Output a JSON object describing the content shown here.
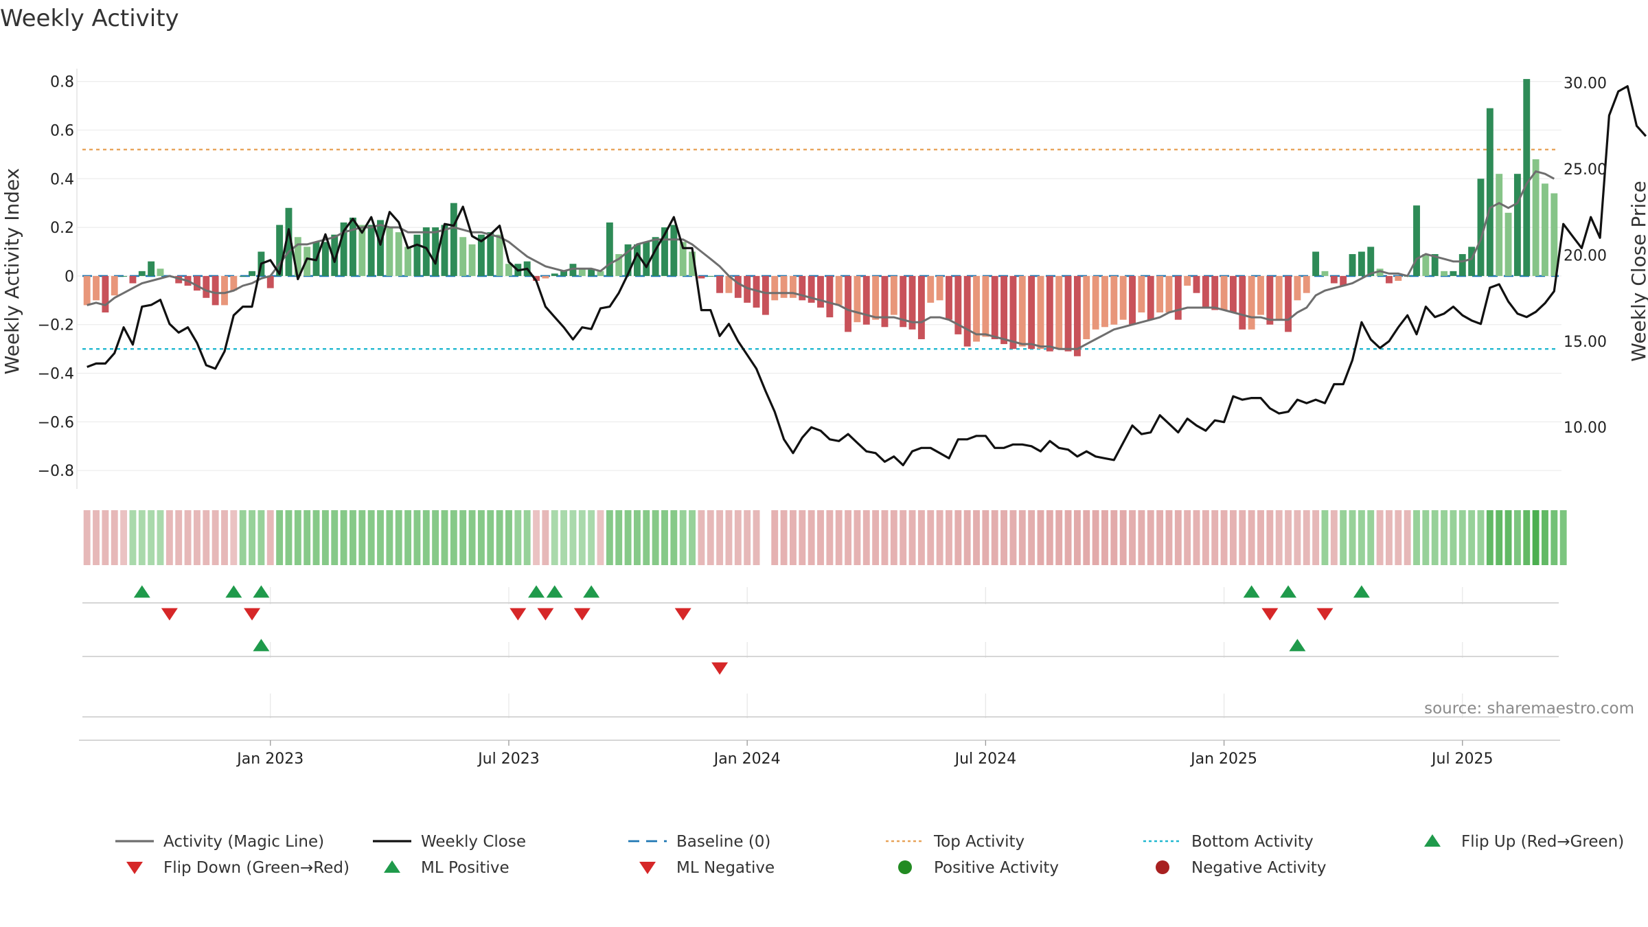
{
  "chart_data": {
    "type": "bar",
    "title": "Weekly Activity",
    "ylabel": "Weekly Activity Index",
    "y2label": "Weekly Close Price",
    "source": "source: sharemaestro.com",
    "ylim": [
      -0.87,
      0.83
    ],
    "y2lim": [
      6.5,
      30.5
    ],
    "yticks": [
      0.8,
      0.6,
      0.4,
      0.2,
      0,
      -0.2,
      -0.4,
      -0.6,
      -0.8
    ],
    "y2ticks": [
      "30.00",
      "25.00",
      "20.00",
      "15.00",
      "10.00"
    ],
    "x_tick_labels": [
      "Jan 2023",
      "Jul 2023",
      "Jan 2024",
      "Jul 2024",
      "Jan 2025",
      "Jul 2025"
    ],
    "x_tick_weeks": [
      20,
      46,
      72,
      98,
      124,
      150
    ],
    "top_activity": 0.52,
    "bottom_activity": -0.3,
    "grid": true,
    "legend_position": "bottom",
    "colors": {
      "pos_strong": "#2e8b57",
      "pos_weak": "#86c488",
      "neg_strong": "#c8525a",
      "neg_weak": "#e8967a",
      "magic": "#6e6e6e",
      "close": "#111111",
      "baseline": "#1f77b4",
      "top": "#e8a35a",
      "bottom": "#20b8d0",
      "flip_up": "#1f9a4b",
      "flip_down": "#d62728"
    },
    "activity": [
      -0.12,
      -0.1,
      -0.15,
      -0.08,
      0,
      -0.03,
      0.02,
      0.06,
      0.03,
      0,
      -0.03,
      -0.04,
      -0.06,
      -0.09,
      -0.12,
      -0.12,
      -0.06,
      0,
      0.02,
      0.1,
      -0.05,
      0.21,
      0.28,
      0.16,
      0.12,
      0.14,
      0.14,
      0.17,
      0.22,
      0.24,
      0.21,
      0.21,
      0.23,
      0.2,
      0.18,
      0.12,
      0.17,
      0.2,
      0.2,
      0.21,
      0.3,
      0.16,
      0.13,
      0.17,
      0.18,
      0.17,
      0.05,
      0.05,
      0.06,
      -0.02,
      -0.01,
      0.01,
      0.02,
      0.05,
      0.03,
      0.03,
      0.02,
      0.22,
      0.09,
      0.13,
      0.13,
      0.14,
      0.16,
      0.2,
      0.21,
      0.14,
      0.1,
      -0.01,
      0,
      -0.07,
      -0.07,
      -0.09,
      -0.11,
      -0.13,
      -0.16,
      -0.1,
      -0.09,
      -0.09,
      -0.1,
      -0.11,
      -0.13,
      -0.17,
      -0.12,
      -0.23,
      -0.19,
      -0.2,
      -0.18,
      -0.21,
      -0.16,
      -0.21,
      -0.22,
      -0.26,
      -0.11,
      -0.1,
      -0.18,
      -0.24,
      -0.29,
      -0.27,
      -0.25,
      -0.26,
      -0.28,
      -0.3,
      -0.29,
      -0.3,
      -0.3,
      -0.31,
      -0.3,
      -0.31,
      -0.33,
      -0.26,
      -0.22,
      -0.21,
      -0.2,
      -0.18,
      -0.2,
      -0.15,
      -0.18,
      -0.15,
      -0.15,
      -0.18,
      -0.04,
      -0.07,
      -0.13,
      -0.14,
      -0.14,
      -0.15,
      -0.22,
      -0.22,
      -0.16,
      -0.2,
      -0.18,
      -0.23,
      -0.1,
      -0.07,
      0.1,
      0.02,
      -0.03,
      -0.04,
      0.09,
      0.1,
      0.12,
      0.03,
      -0.03,
      -0.02,
      0,
      0.29,
      0.09,
      0.09,
      0.02,
      0.02,
      0.09,
      0.12,
      0.4,
      0.69,
      0.42,
      0.26,
      0.42,
      0.81,
      0.48,
      0.38,
      0.34
    ],
    "magic_line": [
      -0.12,
      -0.11,
      -0.12,
      -0.09,
      -0.07,
      -0.05,
      -0.03,
      -0.02,
      -0.01,
      0,
      -0.01,
      -0.02,
      -0.04,
      -0.06,
      -0.07,
      -0.07,
      -0.06,
      -0.04,
      -0.03,
      -0.01,
      0,
      0.05,
      0.1,
      0.13,
      0.13,
      0.14,
      0.15,
      0.16,
      0.18,
      0.19,
      0.2,
      0.2,
      0.21,
      0.2,
      0.2,
      0.18,
      0.18,
      0.18,
      0.18,
      0.19,
      0.2,
      0.19,
      0.18,
      0.18,
      0.17,
      0.16,
      0.14,
      0.11,
      0.08,
      0.06,
      0.04,
      0.03,
      0.02,
      0.03,
      0.03,
      0.03,
      0.02,
      0.05,
      0.07,
      0.1,
      0.13,
      0.14,
      0.15,
      0.15,
      0.15,
      0.15,
      0.13,
      0.1,
      0.07,
      0.04,
      0,
      -0.03,
      -0.05,
      -0.06,
      -0.07,
      -0.07,
      -0.07,
      -0.07,
      -0.08,
      -0.09,
      -0.1,
      -0.11,
      -0.12,
      -0.14,
      -0.15,
      -0.16,
      -0.17,
      -0.17,
      -0.17,
      -0.18,
      -0.19,
      -0.19,
      -0.17,
      -0.17,
      -0.18,
      -0.2,
      -0.22,
      -0.24,
      -0.24,
      -0.25,
      -0.26,
      -0.27,
      -0.28,
      -0.28,
      -0.29,
      -0.29,
      -0.3,
      -0.3,
      -0.3,
      -0.28,
      -0.26,
      -0.24,
      -0.22,
      -0.21,
      -0.2,
      -0.19,
      -0.18,
      -0.17,
      -0.15,
      -0.14,
      -0.13,
      -0.13,
      -0.13,
      -0.13,
      -0.14,
      -0.15,
      -0.16,
      -0.17,
      -0.17,
      -0.18,
      -0.18,
      -0.18,
      -0.15,
      -0.13,
      -0.08,
      -0.06,
      -0.05,
      -0.04,
      -0.03,
      -0.01,
      0.01,
      0.02,
      0.01,
      0.01,
      0,
      0.07,
      0.09,
      0.08,
      0.07,
      0.06,
      0.06,
      0.07,
      0.15,
      0.28,
      0.3,
      0.28,
      0.3,
      0.38,
      0.43,
      0.42,
      0.4
    ],
    "weekly_close": [
      13.5,
      13.7,
      13.7,
      14.3,
      15.8,
      14.8,
      17.0,
      17.1,
      17.4,
      16.0,
      15.5,
      15.8,
      14.9,
      13.6,
      13.4,
      14.4,
      16.5,
      17.0,
      17.0,
      19.5,
      19.7,
      18.9,
      21.5,
      18.6,
      19.8,
      19.7,
      21.2,
      19.6,
      21.4,
      22.1,
      21.3,
      22.2,
      20.6,
      22.5,
      21.9,
      20.4,
      20.6,
      20.4,
      19.5,
      21.8,
      21.7,
      22.8,
      21.1,
      20.8,
      21.2,
      21.7,
      19.6,
      19.1,
      19.2,
      18.5,
      17.0,
      16.4,
      15.8,
      15.1,
      15.8,
      15.7,
      16.9,
      17.0,
      17.8,
      18.9,
      20.1,
      19.3,
      20.3,
      21.2,
      22.2,
      20.4,
      20.4,
      16.8,
      16.8,
      15.3,
      16.0,
      15.0,
      14.2,
      13.4,
      12.1,
      10.9,
      9.3,
      8.5,
      9.4,
      10.0,
      9.8,
      9.3,
      9.2,
      9.6,
      9.1,
      8.6,
      8.5,
      8.0,
      8.3,
      7.8,
      8.6,
      8.8,
      8.8,
      8.5,
      8.2,
      9.3,
      9.3,
      9.5,
      9.5,
      8.8,
      8.8,
      9.0,
      9.0,
      8.9,
      8.6,
      9.2,
      8.8,
      8.7,
      8.3,
      8.6,
      8.3,
      8.2,
      8.1,
      9.1,
      10.1,
      9.6,
      9.7,
      10.7,
      10.2,
      9.7,
      10.5,
      10.1,
      9.8,
      10.4,
      10.3,
      11.8,
      11.6,
      11.7,
      11.7,
      11.1,
      10.8,
      10.9,
      11.6,
      11.4,
      11.6,
      11.4,
      12.5,
      12.5,
      13.9,
      16.1,
      15.1,
      14.6,
      15.0,
      15.8,
      16.5,
      15.4,
      17.0,
      16.4,
      16.6,
      17.0,
      16.5,
      16.2,
      16.0,
      18.1,
      18.3,
      17.3,
      16.6,
      16.4,
      16.7,
      17.2,
      17.9,
      21.8,
      21.1,
      20.4,
      22.2,
      21.0,
      28.1,
      29.5,
      29.8,
      27.5,
      26.9
    ],
    "strip_levels": [
      -0.3,
      -0.3,
      -0.3,
      -0.3,
      -0.2,
      0.2,
      0.2,
      0.2,
      0.2,
      -0.3,
      -0.3,
      -0.3,
      -0.3,
      -0.3,
      -0.3,
      -0.3,
      -0.2,
      0.3,
      0.3,
      0.3,
      -0.3,
      0.4,
      0.4,
      0.4,
      0.4,
      0.4,
      0.4,
      0.4,
      0.4,
      0.4,
      0.4,
      0.4,
      0.4,
      0.4,
      0.4,
      0.4,
      0.4,
      0.4,
      0.4,
      0.4,
      0.4,
      0.4,
      0.4,
      0.4,
      0.4,
      0.4,
      0.4,
      0.3,
      0.3,
      -0.2,
      -0.3,
      0.2,
      0.2,
      0.2,
      0.2,
      0.2,
      -0.2,
      0.4,
      0.4,
      0.4,
      0.4,
      0.4,
      0.4,
      0.4,
      0.4,
      0.3,
      0.3,
      -0.3,
      -0.3,
      -0.3,
      -0.3,
      -0.3,
      -0.3,
      -0.3,
      null,
      -0.35,
      -0.35,
      -0.35,
      -0.35,
      -0.35,
      -0.35,
      -0.35,
      -0.35,
      -0.35,
      -0.35,
      -0.35,
      -0.35,
      -0.35,
      -0.35,
      -0.35,
      -0.35,
      -0.35,
      -0.35,
      -0.35,
      -0.35,
      -0.4,
      -0.4,
      -0.4,
      -0.4,
      -0.4,
      -0.4,
      -0.4,
      -0.4,
      -0.4,
      -0.45,
      -0.45,
      -0.45,
      -0.45,
      -0.45,
      -0.45,
      -0.45,
      -0.45,
      -0.45,
      -0.45,
      -0.4,
      -0.4,
      -0.4,
      -0.4,
      -0.4,
      -0.4,
      -0.35,
      -0.35,
      -0.35,
      -0.35,
      -0.35,
      -0.35,
      -0.35,
      -0.35,
      -0.35,
      -0.35,
      -0.3,
      -0.3,
      -0.3,
      -0.3,
      -0.3,
      0.3,
      -0.3,
      0.3,
      0.3,
      0.3,
      0.3,
      -0.3,
      -0.3,
      -0.3,
      -0.3,
      0.3,
      0.3,
      0.3,
      0.3,
      0.3,
      0.3,
      0.3,
      0.3,
      0.6,
      0.6,
      0.6,
      0.45,
      0.6,
      0.8,
      0.6,
      0.5,
      0.45
    ],
    "flip_up_weeks": [
      6,
      16,
      19,
      49,
      51,
      55,
      127,
      131,
      139
    ],
    "flip_down_weeks": [
      9,
      18,
      47,
      50,
      54,
      65,
      129,
      135
    ],
    "ml_positive_weeks": [
      19,
      132
    ],
    "ml_negative_weeks": [
      69
    ],
    "legend": [
      {
        "label": "Activity (Magic Line)",
        "kind": "line",
        "color": "#6e6e6e"
      },
      {
        "label": "Weekly Close",
        "kind": "line",
        "color": "#111111"
      },
      {
        "label": "Baseline (0)",
        "kind": "dash",
        "color": "#1f77b4"
      },
      {
        "label": "Top Activity",
        "kind": "dot",
        "color": "#e8a35a"
      },
      {
        "label": "Bottom Activity",
        "kind": "dot",
        "color": "#20b8d0"
      },
      {
        "label": "Flip Up (Red→Green)",
        "kind": "up",
        "color": "#1f9a4b"
      },
      {
        "label": "Flip Down (Green→Red)",
        "kind": "down",
        "color": "#d62728"
      },
      {
        "label": "ML Positive",
        "kind": "up",
        "color": "#1f9a4b"
      },
      {
        "label": "ML Negative",
        "kind": "down",
        "color": "#d62728"
      },
      {
        "label": "Positive Activity",
        "kind": "circle",
        "color": "#228b22"
      },
      {
        "label": "Negative Activity",
        "kind": "circle",
        "color": "#a82020"
      }
    ]
  }
}
